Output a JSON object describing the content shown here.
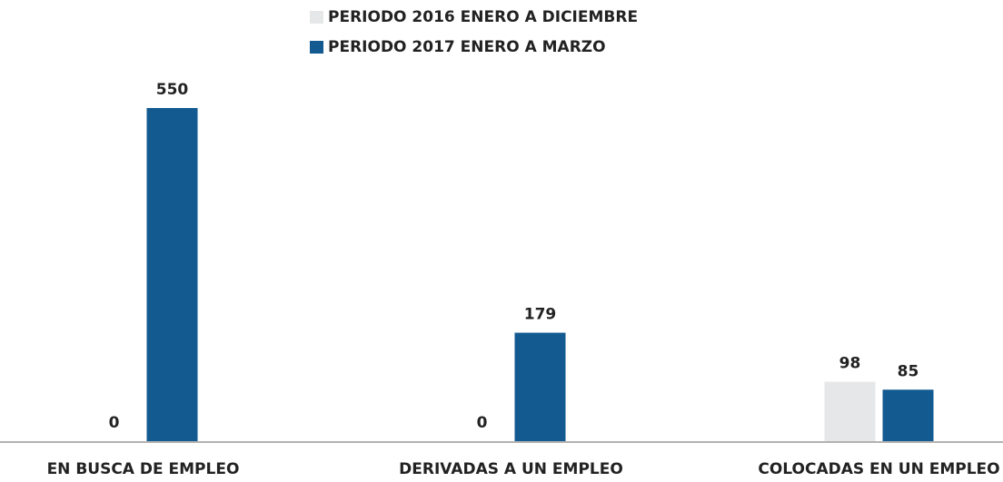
{
  "chart_data": {
    "type": "bar",
    "categories": [
      "EN BUSCA DE EMPLEO",
      "DERIVADAS A UN EMPLEO",
      "COLOCADAS EN UN EMPLEO"
    ],
    "series": [
      {
        "name": "PERIODO 2016 ENERO A DICIEMBRE",
        "color": "#e6e7e8",
        "values": [
          0,
          0,
          98
        ]
      },
      {
        "name": "PERIODO 2017 ENERO A MARZO",
        "color": "#135a91",
        "values": [
          550,
          179,
          85
        ]
      }
    ],
    "legend": "top"
  }
}
